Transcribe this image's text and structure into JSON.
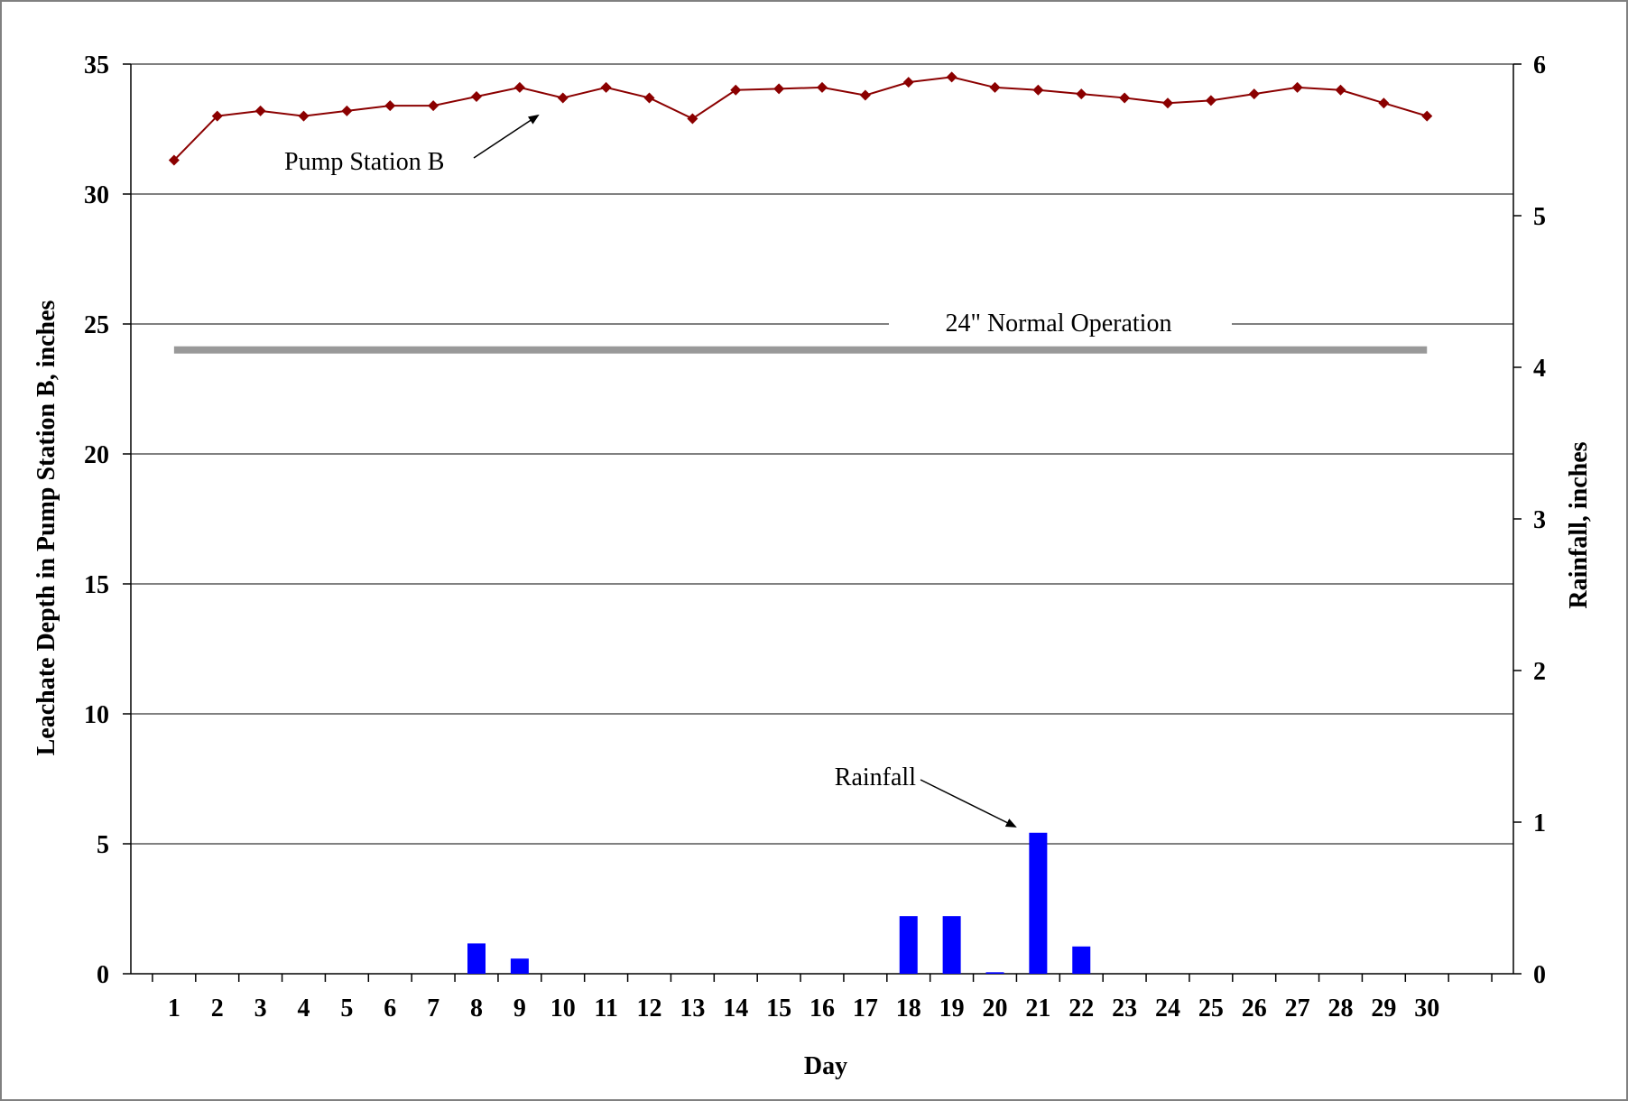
{
  "chart_data": {
    "type": "bar+line",
    "xlabel": "Day",
    "ylabel_left": "Leachate Depth in Pump Station B, inches",
    "ylabel_right": "Rainfall, inches",
    "ylim_left": [
      0,
      35
    ],
    "ylim_right": [
      0,
      6
    ],
    "yticks_left": [
      "0",
      "5",
      "10",
      "15",
      "20",
      "25",
      "30",
      "35"
    ],
    "yticks_right": [
      "0",
      "1",
      "2",
      "3",
      "4",
      "5",
      "6"
    ],
    "categories": [
      "1",
      "2",
      "3",
      "4",
      "5",
      "6",
      "7",
      "8",
      "9",
      "10",
      "11",
      "12",
      "13",
      "14",
      "15",
      "16",
      "17",
      "18",
      "19",
      "20",
      "21",
      "22",
      "23",
      "24",
      "25",
      "26",
      "27",
      "28",
      "29",
      "30"
    ],
    "grid": true,
    "series": [
      {
        "name": "Pump Station B",
        "type": "line",
        "axis": "left",
        "color": "#8B0000",
        "marker": "diamond",
        "values": [
          31.3,
          33.0,
          33.2,
          33.0,
          33.2,
          33.4,
          33.4,
          33.75,
          34.1,
          33.7,
          34.1,
          33.7,
          32.9,
          34.0,
          34.05,
          34.1,
          33.8,
          34.3,
          34.5,
          34.1,
          34.0,
          33.85,
          33.7,
          33.5,
          33.6,
          33.85,
          34.1,
          34.0,
          33.5,
          33.0
        ]
      },
      {
        "name": "Rainfall",
        "type": "bar",
        "axis": "right",
        "color": "#0000FF",
        "values": [
          0,
          0,
          0,
          0,
          0,
          0,
          0,
          0.2,
          0.1,
          0,
          0,
          0,
          0,
          0,
          0,
          0,
          0,
          0.38,
          0.38,
          0.01,
          0.93,
          0.18,
          0,
          0,
          0,
          0,
          0,
          0,
          0,
          0
        ]
      }
    ],
    "reference_line": {
      "label": "24\" Normal Operation",
      "value": 24,
      "axis": "left",
      "color": "#999999"
    },
    "annotations": [
      {
        "text": "Pump Station B",
        "points_to": "Pump Station B"
      },
      {
        "text": "Rainfall",
        "points_to": "Rainfall"
      }
    ]
  }
}
